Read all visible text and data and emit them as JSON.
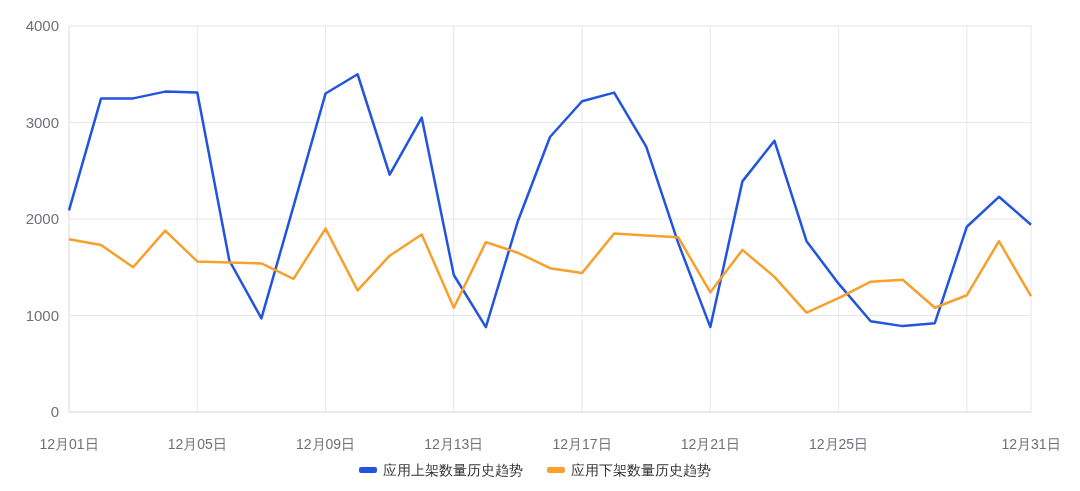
{
  "chart_data": {
    "type": "line",
    "categories": [
      "12月01日",
      null,
      null,
      null,
      "12月05日",
      null,
      null,
      null,
      "12月09日",
      null,
      null,
      null,
      "12月13日",
      null,
      null,
      null,
      "12月17日",
      null,
      null,
      null,
      "12月21日",
      null,
      null,
      null,
      "12月25日",
      null,
      null,
      null,
      null,
      null,
      "12月31日"
    ],
    "series": [
      {
        "name": "应用上架数量历史趋势",
        "color": "#2254e0",
        "values": [
          2090,
          3250,
          3250,
          3320,
          3310,
          1570,
          970,
          2130,
          3300,
          3500,
          2460,
          3050,
          1420,
          880,
          1980,
          2850,
          3220,
          3310,
          2750,
          1750,
          880,
          2390,
          2810,
          1770,
          1330,
          940,
          890,
          920,
          1920,
          2230,
          1940
        ]
      },
      {
        "name": "应用下架数量历史趋势",
        "color": "#f7a02c",
        "values": [
          1790,
          1730,
          1500,
          1880,
          1560,
          1550,
          1540,
          1380,
          1900,
          1260,
          1620,
          1840,
          1080,
          1760,
          1650,
          1490,
          1440,
          1850,
          1830,
          1810,
          1240,
          1680,
          1400,
          1030,
          1180,
          1350,
          1370,
          1080,
          1210,
          1770,
          1200
        ]
      }
    ],
    "ylim": [
      0,
      4000
    ],
    "yticks": [
      0,
      1000,
      2000,
      3000,
      4000
    ],
    "grid": true,
    "legend": "bottom",
    "line_style": "solid"
  }
}
